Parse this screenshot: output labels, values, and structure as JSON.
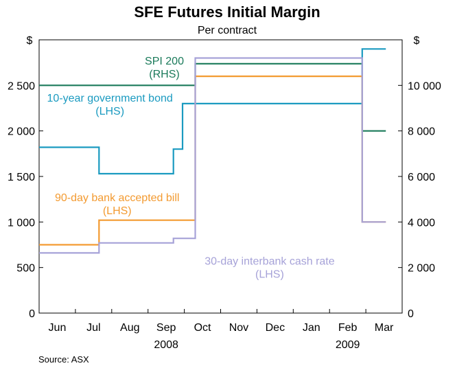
{
  "chart_data": {
    "type": "line",
    "step": true,
    "title": "SFE Futures Initial Margin",
    "subtitle": "Per contract",
    "source": "Source: ASX",
    "left_axis": {
      "unit": "$",
      "ylim": [
        0,
        3000
      ],
      "ticks": [
        0,
        500,
        1000,
        1500,
        2000,
        2500
      ],
      "tick_labels": [
        "0",
        "500",
        "1 000",
        "1 500",
        "2 000",
        "2 500"
      ]
    },
    "right_axis": {
      "unit": "$",
      "ylim": [
        0,
        12000
      ],
      "ticks": [
        0,
        2000,
        4000,
        6000,
        8000,
        10000
      ],
      "tick_labels": [
        "0",
        "2 000",
        "4 000",
        "6 000",
        "8 000",
        "10 000"
      ]
    },
    "x_axis": {
      "range": [
        0,
        10
      ],
      "month_labels": [
        "Jun",
        "Jul",
        "Aug",
        "Sep",
        "Oct",
        "Nov",
        "Dec",
        "Jan",
        "Feb",
        "Mar"
      ],
      "month_centers": [
        0.5,
        1.5,
        2.5,
        3.5,
        4.5,
        5.5,
        6.5,
        7.5,
        8.5,
        9.5
      ],
      "year_labels": [
        {
          "text": "2008",
          "pos": 3.5
        },
        {
          "text": "2009",
          "pos": 8.5
        }
      ]
    },
    "series": [
      {
        "name": "SPI 200",
        "name_sub": "(RHS)",
        "axis": "right",
        "color": "#1a7a5a",
        "points": [
          [
            0,
            10000
          ],
          [
            4.3,
            10000
          ],
          [
            4.3,
            10950
          ],
          [
            8.9,
            10950
          ],
          [
            8.9,
            8000
          ],
          [
            9.55,
            8000
          ]
        ],
        "label_pos": [
          3.45,
          2730
        ]
      },
      {
        "name": "10-year government bond",
        "name_sub": "(LHS)",
        "axis": "left",
        "color": "#1a9ac0",
        "points": [
          [
            0,
            1820
          ],
          [
            1.65,
            1820
          ],
          [
            1.65,
            1530
          ],
          [
            3.7,
            1530
          ],
          [
            3.7,
            1800
          ],
          [
            3.95,
            1800
          ],
          [
            3.95,
            2300
          ],
          [
            8.9,
            2300
          ],
          [
            8.9,
            2900
          ],
          [
            9.55,
            2900
          ]
        ],
        "label_pos": [
          1.95,
          2320
        ]
      },
      {
        "name": "90-day bank accepted bill",
        "name_sub": "(LHS)",
        "axis": "left",
        "color": "#f39a30",
        "points": [
          [
            0,
            750
          ],
          [
            1.65,
            750
          ],
          [
            1.65,
            1020
          ],
          [
            4.3,
            1020
          ],
          [
            4.3,
            2600
          ],
          [
            8.9,
            2600
          ],
          [
            8.9,
            1000
          ],
          [
            9.55,
            1000
          ]
        ],
        "label_pos": [
          2.15,
          1230
        ]
      },
      {
        "name": "30-day interbank cash rate",
        "name_sub": "(LHS)",
        "axis": "left",
        "color": "#a6a2d8",
        "points": [
          [
            0,
            660
          ],
          [
            1.65,
            660
          ],
          [
            1.65,
            770
          ],
          [
            3.7,
            770
          ],
          [
            3.7,
            820
          ],
          [
            4.3,
            820
          ],
          [
            4.3,
            2800
          ],
          [
            8.9,
            2800
          ],
          [
            8.9,
            1000
          ],
          [
            9.55,
            1000
          ]
        ],
        "label_pos": [
          6.35,
          530
        ]
      }
    ]
  }
}
